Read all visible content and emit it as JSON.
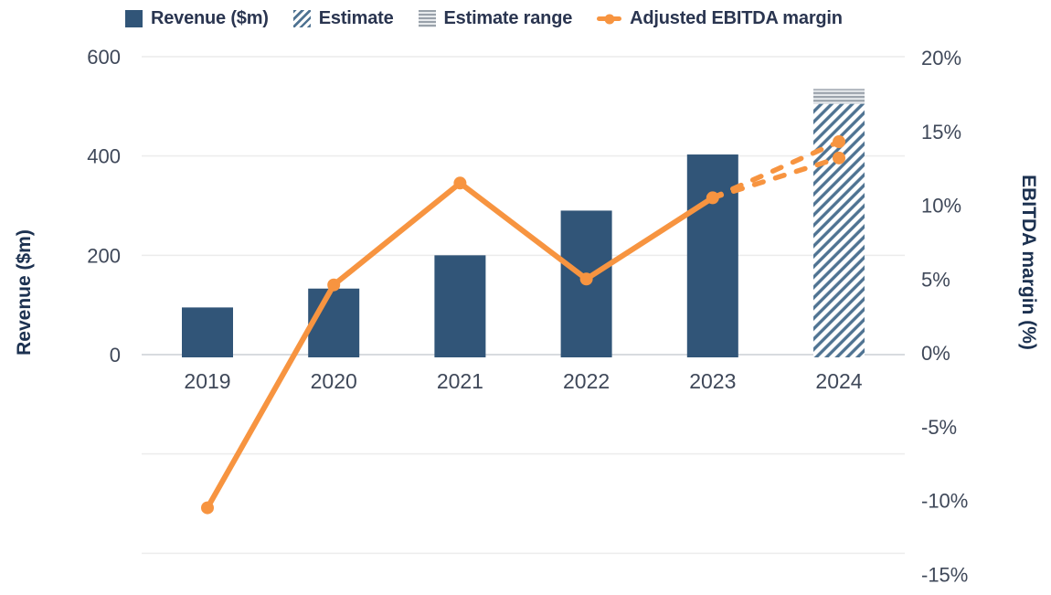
{
  "chart_data": {
    "type": "combo-bar-line",
    "categories": [
      "2019",
      "2020",
      "2021",
      "2022",
      "2023",
      "2024"
    ],
    "series": [
      {
        "name": "Revenue ($m)",
        "type": "bar",
        "axis": "left",
        "values": [
          95,
          133,
          200,
          290,
          403,
          null
        ]
      },
      {
        "name": "Estimate",
        "type": "bar-hatched",
        "axis": "left",
        "category": "2024",
        "value": 505
      },
      {
        "name": "Estimate range",
        "type": "range-band",
        "axis": "left",
        "category": "2024",
        "low": 505,
        "high": 535
      },
      {
        "name": "Adjusted EBITDA margin",
        "type": "line",
        "axis": "right",
        "values": [
          -10.5,
          4.6,
          11.5,
          5.0,
          10.5,
          null
        ],
        "forecast": {
          "from_category": "2023",
          "category": "2024",
          "high": 14.3,
          "low": 13.2,
          "style": "dashed"
        }
      }
    ],
    "left_axis": {
      "title": "Revenue ($m)",
      "tick_labels": [
        "600",
        "400",
        "200",
        "0"
      ],
      "tick_values": [
        600,
        400,
        200,
        0
      ]
    },
    "right_axis": {
      "title": "EBITDA margin (%)",
      "tick_labels": [
        "20%",
        "15%",
        "10%",
        "5%",
        "0%",
        "-5%",
        "-10%",
        "-15%"
      ],
      "tick_values": [
        20,
        15,
        10,
        5,
        0,
        -5,
        -10,
        -15
      ],
      "range": [
        -15,
        20
      ]
    },
    "legend": [
      {
        "label": "Revenue ($m)",
        "swatch": "solid-square"
      },
      {
        "label": "Estimate",
        "swatch": "diagonal-hatch-square"
      },
      {
        "label": "Estimate range",
        "swatch": "horizontal-lines-square"
      },
      {
        "label": "Adjusted EBITDA margin",
        "swatch": "orange-line-with-dot"
      }
    ],
    "legend_position": "top",
    "grid": "horizontal only",
    "colors": {
      "bar": "#315578",
      "hatch_stripe": "#4F7392",
      "range_stripe": "#99A1AA",
      "range_bg": "#E7EAED",
      "line": "#F79440",
      "tick_text": "#3F4859",
      "title_text": "#1C3150",
      "grid": "#ECECEC",
      "zero_axis": "#D8DBDF"
    }
  }
}
